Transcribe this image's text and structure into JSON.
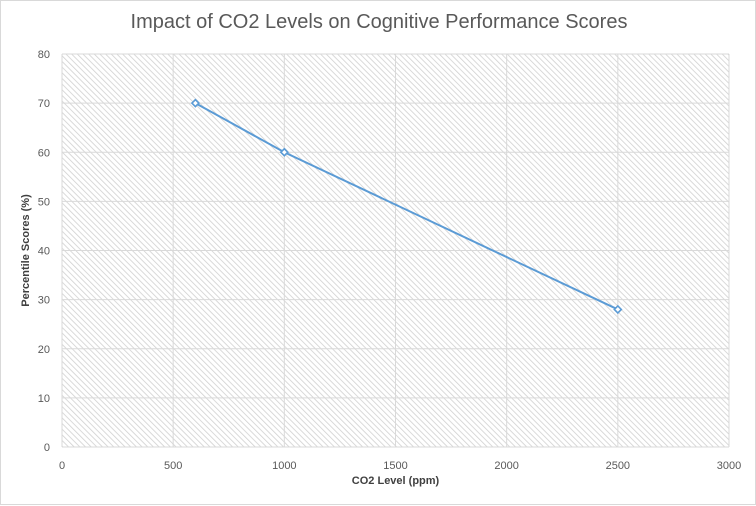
{
  "chart_data": {
    "type": "line",
    "title": "Impact of CO2 Levels on Cognitive Performance Scores",
    "xlabel": "CO2 Level (ppm)",
    "ylabel": "Percentile Scores (%)",
    "xlim": [
      0,
      3000
    ],
    "ylim": [
      0,
      80
    ],
    "xticks": [
      0,
      500,
      1000,
      1500,
      2000,
      2500,
      3000
    ],
    "yticks": [
      0,
      10,
      20,
      30,
      40,
      50,
      60,
      70,
      80
    ],
    "grid": true,
    "legend": "none",
    "series": [
      {
        "x": [
          600,
          1000,
          2500
        ],
        "y": [
          70,
          60,
          28
        ],
        "color": "#5b9bd5",
        "marker": "diamond"
      }
    ],
    "plot_background": "hatched"
  }
}
